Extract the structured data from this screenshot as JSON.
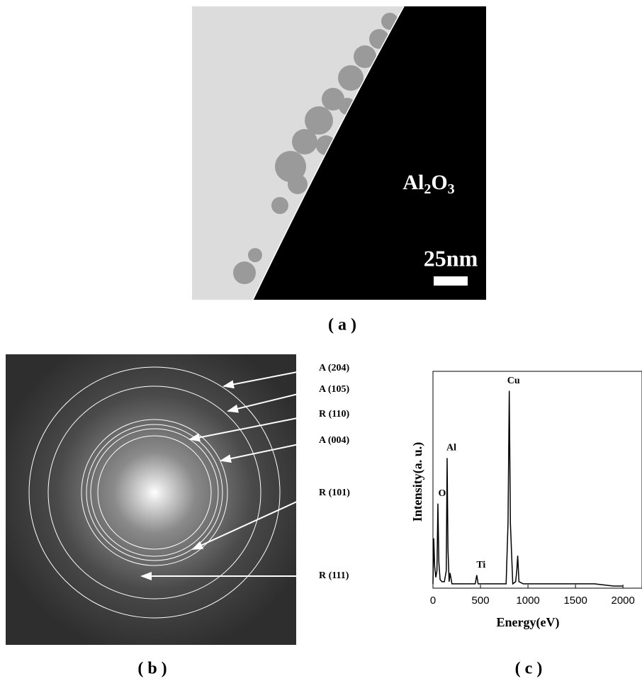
{
  "panel_a": {
    "material_label": [
      "Al",
      "2",
      "O",
      "3"
    ],
    "scale_bar": "25nm",
    "caption": "( a )"
  },
  "panel_b": {
    "ring_labels": [
      "A (204)",
      "A (105)",
      "R (110)",
      "A (004)",
      "R (101)",
      "R (111)"
    ],
    "caption": "( b )"
  },
  "chart_data": {
    "type": "line",
    "x": [
      0,
      8,
      18,
      30,
      42,
      52,
      62,
      75,
      95,
      120,
      140,
      149,
      158,
      170,
      180,
      200,
      300,
      400,
      445,
      461,
      475,
      520,
      600,
      700,
      770,
      790,
      803,
      815,
      840,
      870,
      882,
      892,
      905,
      950,
      1100,
      1300,
      1500,
      1700,
      1900,
      2000
    ],
    "values": [
      2,
      23,
      10,
      5,
      8,
      39,
      12,
      4,
      3,
      3,
      8,
      60,
      18,
      3,
      7,
      2,
      2,
      2,
      2,
      6,
      2,
      2,
      2,
      2,
      2,
      30,
      91,
      30,
      2,
      3,
      8,
      15,
      3,
      2,
      2,
      2,
      2,
      2,
      1,
      1
    ],
    "color": "#000000",
    "xlim": [
      0,
      2200
    ],
    "ylim": [
      0,
      100
    ],
    "xticks": [
      0,
      500,
      1000,
      1500,
      2000
    ],
    "xlabel": "Energy(eV)",
    "ylabel": "Intensity(a. u.)",
    "annotations": [
      {
        "text": "O",
        "x": 52
      },
      {
        "text": "Al",
        "x": 149
      },
      {
        "text": "Ti",
        "x": 461
      },
      {
        "text": "Cu",
        "x": 803
      }
    ],
    "caption": "( c )"
  }
}
